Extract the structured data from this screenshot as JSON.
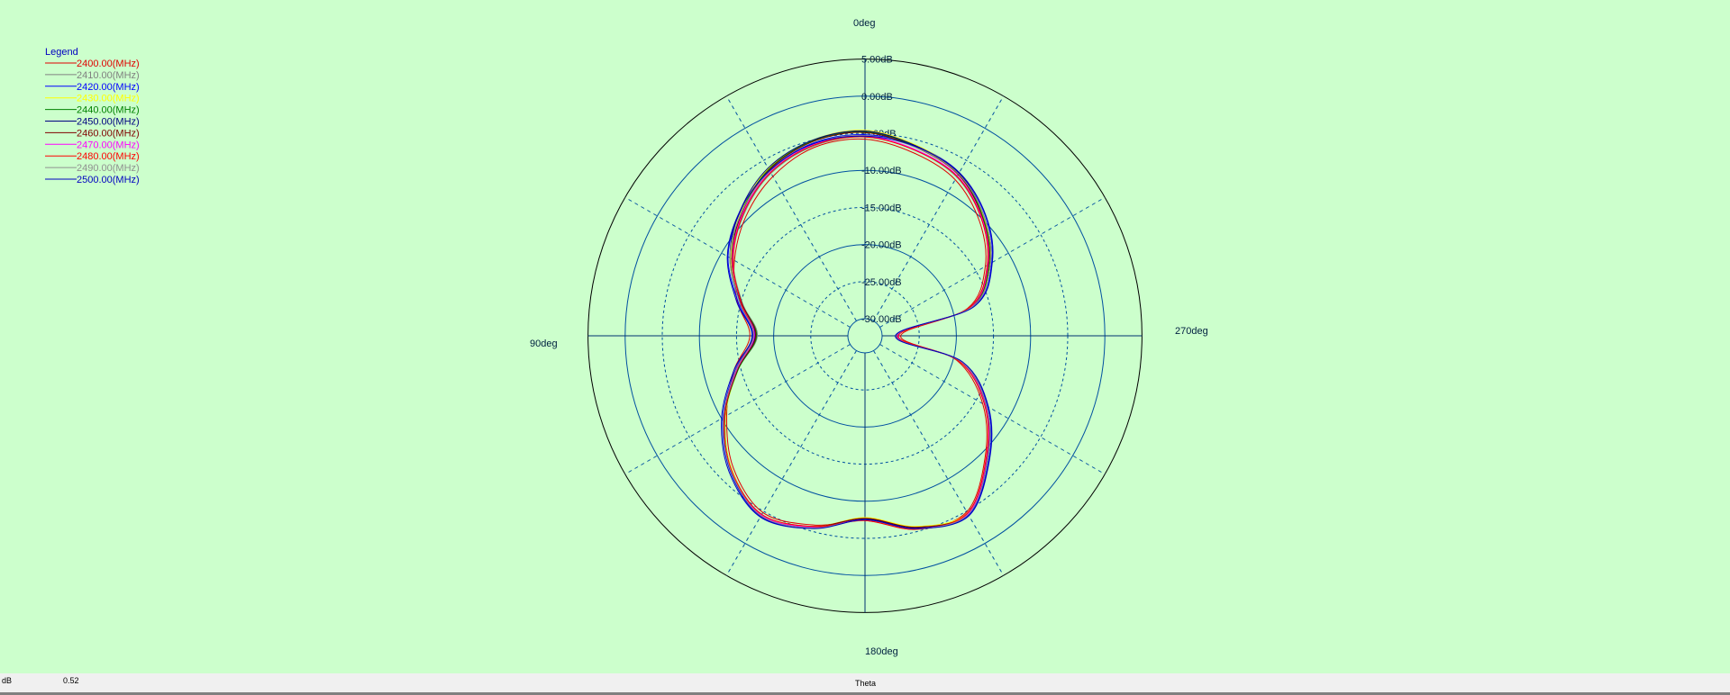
{
  "chart_data": {
    "type": "polar-line",
    "angle_unit": "deg",
    "angle_direction": "counterclockwise",
    "zero_location": "top",
    "angle_labels": [
      "0deg",
      "90deg",
      "180deg",
      "270deg"
    ],
    "radial_labels": [
      "5.00dB",
      "0.00dB",
      "-5.00dB",
      "-10.00dB",
      "-15.00dB",
      "-20.00dB",
      "-25.00dB",
      "-30.00dB"
    ],
    "radial_range": [
      -30,
      5
    ],
    "radial_ticks": [
      5,
      0,
      -5,
      -10,
      -15,
      -20,
      -25,
      -30
    ],
    "grid": true,
    "legend_title": "Legend",
    "legend_position": "top-left",
    "theta": [
      0,
      15,
      30,
      45,
      60,
      75,
      90,
      105,
      120,
      135,
      150,
      165,
      180,
      195,
      210,
      225,
      240,
      255,
      270,
      285,
      300,
      315,
      330,
      345
    ],
    "series": [
      {
        "name": "2400.00(MHz)",
        "color": "#e00000",
        "values": [
          -5.8,
          -6.0,
          -7.5,
          -9.6,
          -12.0,
          -14.5,
          -16.8,
          -14.0,
          -10.8,
          -7.2,
          -4.8,
          -5.9,
          -7.4,
          -5.3,
          -4.9,
          -9.4,
          -14.0,
          -19.5,
          -27.5,
          -18.0,
          -13.6,
          -10.5,
          -8.0,
          -6.8
        ]
      },
      {
        "name": "2410.00(MHz)",
        "color": "#808080",
        "values": [
          -5.5,
          -5.8,
          -7.0,
          -9.2,
          -11.8,
          -15.2,
          -17.8,
          -14.6,
          -10.6,
          -6.9,
          -4.5,
          -5.7,
          -7.7,
          -5.6,
          -4.7,
          -9.1,
          -13.7,
          -19.2,
          -28.0,
          -17.8,
          -13.3,
          -10.1,
          -7.6,
          -6.4
        ]
      },
      {
        "name": "2420.00(MHz)",
        "color": "#0000ff",
        "values": [
          -5.2,
          -5.4,
          -6.6,
          -8.6,
          -11.0,
          -14.6,
          -17.2,
          -14.2,
          -10.2,
          -6.6,
          -4.2,
          -5.5,
          -7.5,
          -5.4,
          -4.4,
          -8.7,
          -13.2,
          -18.8,
          -28.2,
          -17.2,
          -12.6,
          -9.4,
          -6.9,
          -5.8
        ]
      },
      {
        "name": "2430.00(MHz)",
        "color": "#ffff00",
        "values": [
          -4.6,
          -5.0,
          -6.3,
          -8.7,
          -11.4,
          -15.0,
          -17.6,
          -14.6,
          -10.6,
          -6.9,
          -4.4,
          -5.7,
          -7.8,
          -5.7,
          -4.7,
          -9.0,
          -13.4,
          -18.9,
          -28.1,
          -17.5,
          -12.9,
          -9.7,
          -7.0,
          -5.7
        ]
      },
      {
        "name": "2440.00(MHz)",
        "color": "#008000",
        "values": [
          -4.8,
          -5.1,
          -6.4,
          -8.8,
          -11.6,
          -15.1,
          -17.7,
          -14.6,
          -10.5,
          -6.8,
          -4.3,
          -5.6,
          -7.6,
          -5.5,
          -4.6,
          -9.0,
          -13.5,
          -19.0,
          -28.0,
          -17.6,
          -13.0,
          -9.8,
          -7.1,
          -5.9
        ]
      },
      {
        "name": "2450.00(MHz)",
        "color": "#000080",
        "values": [
          -4.7,
          -5.0,
          -6.2,
          -8.5,
          -11.3,
          -14.9,
          -17.5,
          -14.4,
          -10.4,
          -6.7,
          -4.3,
          -5.6,
          -7.6,
          -5.5,
          -4.5,
          -8.9,
          -13.4,
          -18.9,
          -28.0,
          -17.4,
          -12.8,
          -9.6,
          -7.0,
          -5.8
        ]
      },
      {
        "name": "2460.00(MHz)",
        "color": "#800000",
        "values": [
          -4.9,
          -5.2,
          -6.5,
          -8.9,
          -11.6,
          -15.1,
          -17.6,
          -14.5,
          -10.5,
          -6.8,
          -4.3,
          -5.7,
          -7.7,
          -5.6,
          -4.6,
          -9.1,
          -13.6,
          -19.1,
          -28.0,
          -17.7,
          -13.1,
          -9.9,
          -7.2,
          -6.0
        ]
      },
      {
        "name": "2470.00(MHz)",
        "color": "#ff00ff",
        "values": [
          -5.4,
          -5.6,
          -6.8,
          -9.0,
          -11.7,
          -15.0,
          -17.4,
          -14.4,
          -10.4,
          -6.8,
          -4.4,
          -5.6,
          -7.5,
          -5.4,
          -4.6,
          -9.1,
          -13.6,
          -19.1,
          -27.9,
          -17.7,
          -13.2,
          -10.0,
          -7.4,
          -6.3
        ]
      },
      {
        "name": "2480.00(MHz)",
        "color": "#ff0000",
        "values": [
          -5.5,
          -5.7,
          -6.9,
          -9.1,
          -11.8,
          -15.0,
          -17.3,
          -14.3,
          -10.4,
          -6.8,
          -4.5,
          -5.7,
          -7.4,
          -5.3,
          -4.7,
          -9.2,
          -13.7,
          -19.2,
          -27.8,
          -17.8,
          -13.3,
          -10.1,
          -7.5,
          -6.4
        ]
      },
      {
        "name": "2490.00(MHz)",
        "color": "#909090",
        "values": [
          -5.3,
          -5.5,
          -6.7,
          -8.8,
          -11.3,
          -14.8,
          -17.3,
          -14.3,
          -10.3,
          -6.7,
          -4.3,
          -5.5,
          -7.5,
          -5.4,
          -4.5,
          -8.9,
          -13.4,
          -18.9,
          -28.1,
          -17.4,
          -12.8,
          -9.6,
          -7.1,
          -6.0
        ]
      },
      {
        "name": "2500.00(MHz)",
        "color": "#0000c0",
        "values": [
          -5.4,
          -5.5,
          -6.6,
          -8.5,
          -10.9,
          -14.4,
          -17.1,
          -14.0,
          -10.0,
          -6.4,
          -4.1,
          -5.4,
          -7.5,
          -5.4,
          -4.3,
          -8.6,
          -13.1,
          -18.7,
          -28.2,
          -17.1,
          -12.5,
          -9.3,
          -6.9,
          -5.9
        ]
      }
    ]
  },
  "status": {
    "unit": "dB",
    "value": "0.52",
    "axis": "Theta"
  }
}
